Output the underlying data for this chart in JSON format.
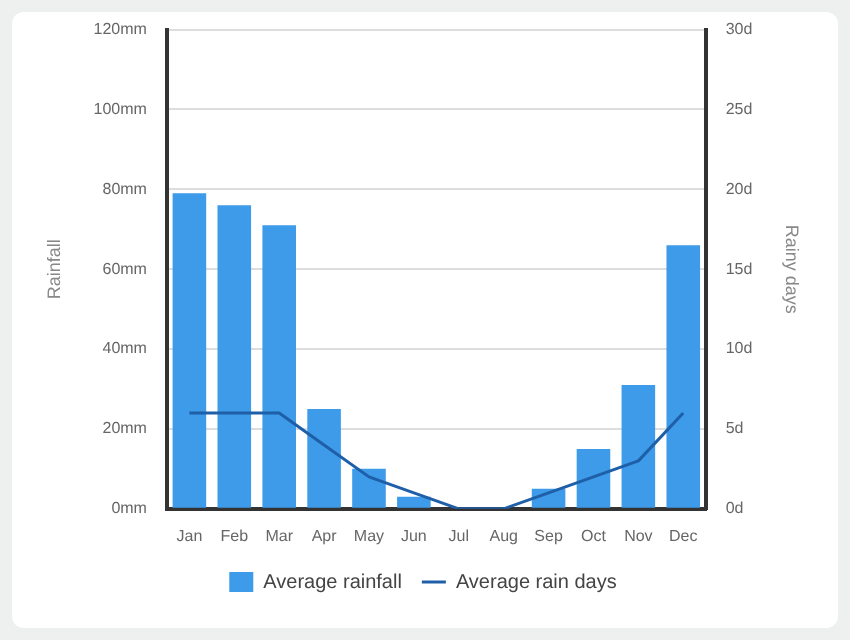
{
  "chart_data": {
    "type": "bar",
    "ylabel": "Rainfall",
    "y2label": "Rainy days",
    "categories": [
      "Jan",
      "Feb",
      "Mar",
      "Apr",
      "May",
      "Jun",
      "Jul",
      "Aug",
      "Sep",
      "Oct",
      "Nov",
      "Dec"
    ],
    "series": [
      {
        "name": "Average rainfall",
        "color": "#3d9be9",
        "values": [
          79,
          76,
          71,
          25,
          10,
          3,
          0,
          0,
          5,
          15,
          31,
          66
        ]
      },
      {
        "name": "Average rain days",
        "type": "line",
        "axis": "y2",
        "color": "#1f5fa8",
        "values": [
          6,
          6,
          6,
          4,
          2,
          1,
          0,
          0,
          1,
          2,
          3,
          6
        ]
      }
    ],
    "ylim": [
      0,
      120
    ],
    "yticks": [
      {
        "value": 0,
        "label": "0mm"
      },
      {
        "value": 20,
        "label": "20mm"
      },
      {
        "value": 40,
        "label": "40mm"
      },
      {
        "value": 60,
        "label": "60mm"
      },
      {
        "value": 80,
        "label": "80mm"
      },
      {
        "value": 100,
        "label": "100mm"
      },
      {
        "value": 120,
        "label": "120mm"
      }
    ],
    "y2lim": [
      0,
      30
    ],
    "y2ticks": [
      {
        "value": 0,
        "label": "0d"
      },
      {
        "value": 5,
        "label": "5d"
      },
      {
        "value": 10,
        "label": "10d"
      },
      {
        "value": 15,
        "label": "15d"
      },
      {
        "value": 20,
        "label": "20d"
      },
      {
        "value": 25,
        "label": "25d"
      },
      {
        "value": 30,
        "label": "30d"
      }
    ],
    "grid": "y",
    "legend": "bottom",
    "marker": "none"
  }
}
